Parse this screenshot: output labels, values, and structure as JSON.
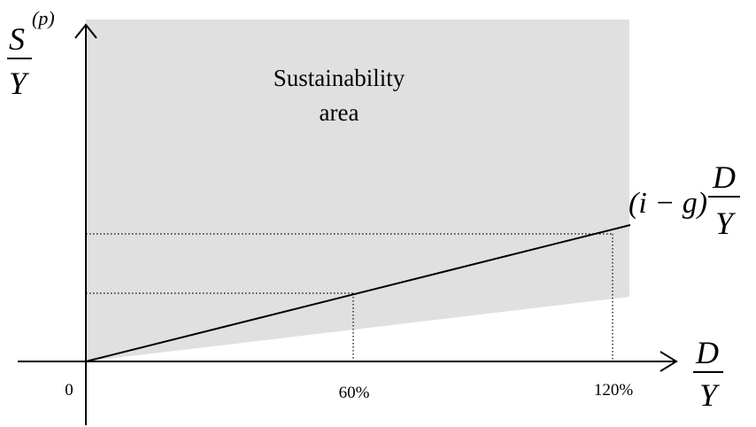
{
  "diagram": {
    "area_label_line1": "Sustainability",
    "area_label_line2": "area",
    "origin_label": "0",
    "x_tick_1": "60%",
    "x_tick_2": "120%",
    "y_axis_label": {
      "numerator": "S",
      "superscript": "(p)",
      "denominator": "Y"
    },
    "x_axis_label": {
      "numerator": "D",
      "denominator": "Y"
    },
    "line_label": {
      "factor": "(i − g)",
      "numerator": "D",
      "denominator": "Y"
    },
    "colors": {
      "area_fill": "#e0e0e0",
      "line": "#000000"
    }
  }
}
